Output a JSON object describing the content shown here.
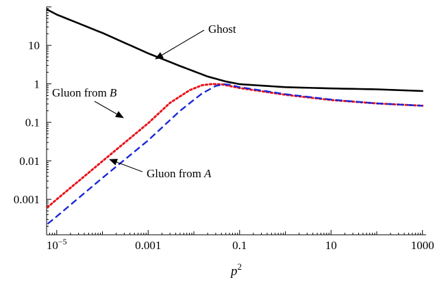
{
  "chart_data": {
    "type": "line",
    "x_scale": "log",
    "y_scale": "log",
    "xlabel": "p",
    "xlabel_superscript": "2",
    "ylabel": "",
    "xlim": [
      6e-06,
      1200
    ],
    "ylim": [
      0.00012,
      100
    ],
    "x_ticks": [
      {
        "value": 1e-05,
        "label": "10",
        "sup": "−5"
      },
      {
        "value": 0.001,
        "label": "0.001",
        "sup": ""
      },
      {
        "value": 0.1,
        "label": "0.1",
        "sup": ""
      },
      {
        "value": 10,
        "label": "10",
        "sup": ""
      },
      {
        "value": 1000,
        "label": "1000",
        "sup": ""
      }
    ],
    "y_ticks": [
      {
        "value": 0.001,
        "label": "0.001"
      },
      {
        "value": 0.01,
        "label": "0.01"
      },
      {
        "value": 0.1,
        "label": "0.1"
      },
      {
        "value": 1,
        "label": "1"
      },
      {
        "value": 10,
        "label": "10"
      }
    ],
    "grid": false,
    "series": [
      {
        "name": "Ghost",
        "color": "#000000",
        "style": "solid",
        "points": [
          [
            6.3e-06,
            84
          ],
          [
            1e-05,
            63
          ],
          [
            0.0001,
            21
          ],
          [
            0.001,
            6.2
          ],
          [
            0.005,
            2.9
          ],
          [
            0.02,
            1.55
          ],
          [
            0.05,
            1.15
          ],
          [
            0.1,
            0.98
          ],
          [
            1,
            0.82
          ],
          [
            10,
            0.76
          ],
          [
            100,
            0.72
          ],
          [
            1000,
            0.65
          ]
        ]
      },
      {
        "name": "Gluon from B",
        "color": "#e8141a",
        "style": "dotted",
        "points": [
          [
            6.3e-06,
            0.00062
          ],
          [
            1e-05,
            0.001
          ],
          [
            0.0001,
            0.0098
          ],
          [
            0.001,
            0.095
          ],
          [
            0.003,
            0.32
          ],
          [
            0.008,
            0.68
          ],
          [
            0.015,
            0.92
          ],
          [
            0.025,
            0.99
          ],
          [
            0.04,
            0.97
          ],
          [
            0.1,
            0.78
          ],
          [
            1,
            0.52
          ],
          [
            10,
            0.38
          ],
          [
            100,
            0.31
          ],
          [
            1000,
            0.27
          ]
        ]
      },
      {
        "name": "Gluon from A",
        "color": "#1a26d8",
        "style": "dashed",
        "points": [
          [
            6.3e-06,
            0.00023
          ],
          [
            1e-05,
            0.00036
          ],
          [
            0.0001,
            0.0036
          ],
          [
            0.001,
            0.034
          ],
          [
            0.005,
            0.2
          ],
          [
            0.015,
            0.56
          ],
          [
            0.03,
            0.88
          ],
          [
            0.045,
            0.98
          ],
          [
            0.06,
            0.95
          ],
          [
            0.1,
            0.82
          ],
          [
            1,
            0.54
          ],
          [
            10,
            0.39
          ],
          [
            100,
            0.31
          ],
          [
            1000,
            0.27
          ]
        ]
      }
    ],
    "annotations": [
      {
        "text": "Ghost",
        "italic_part": ""
      },
      {
        "text": "Gluon from ",
        "italic_part": "B"
      },
      {
        "text": "Gluon from ",
        "italic_part": "A"
      }
    ]
  }
}
